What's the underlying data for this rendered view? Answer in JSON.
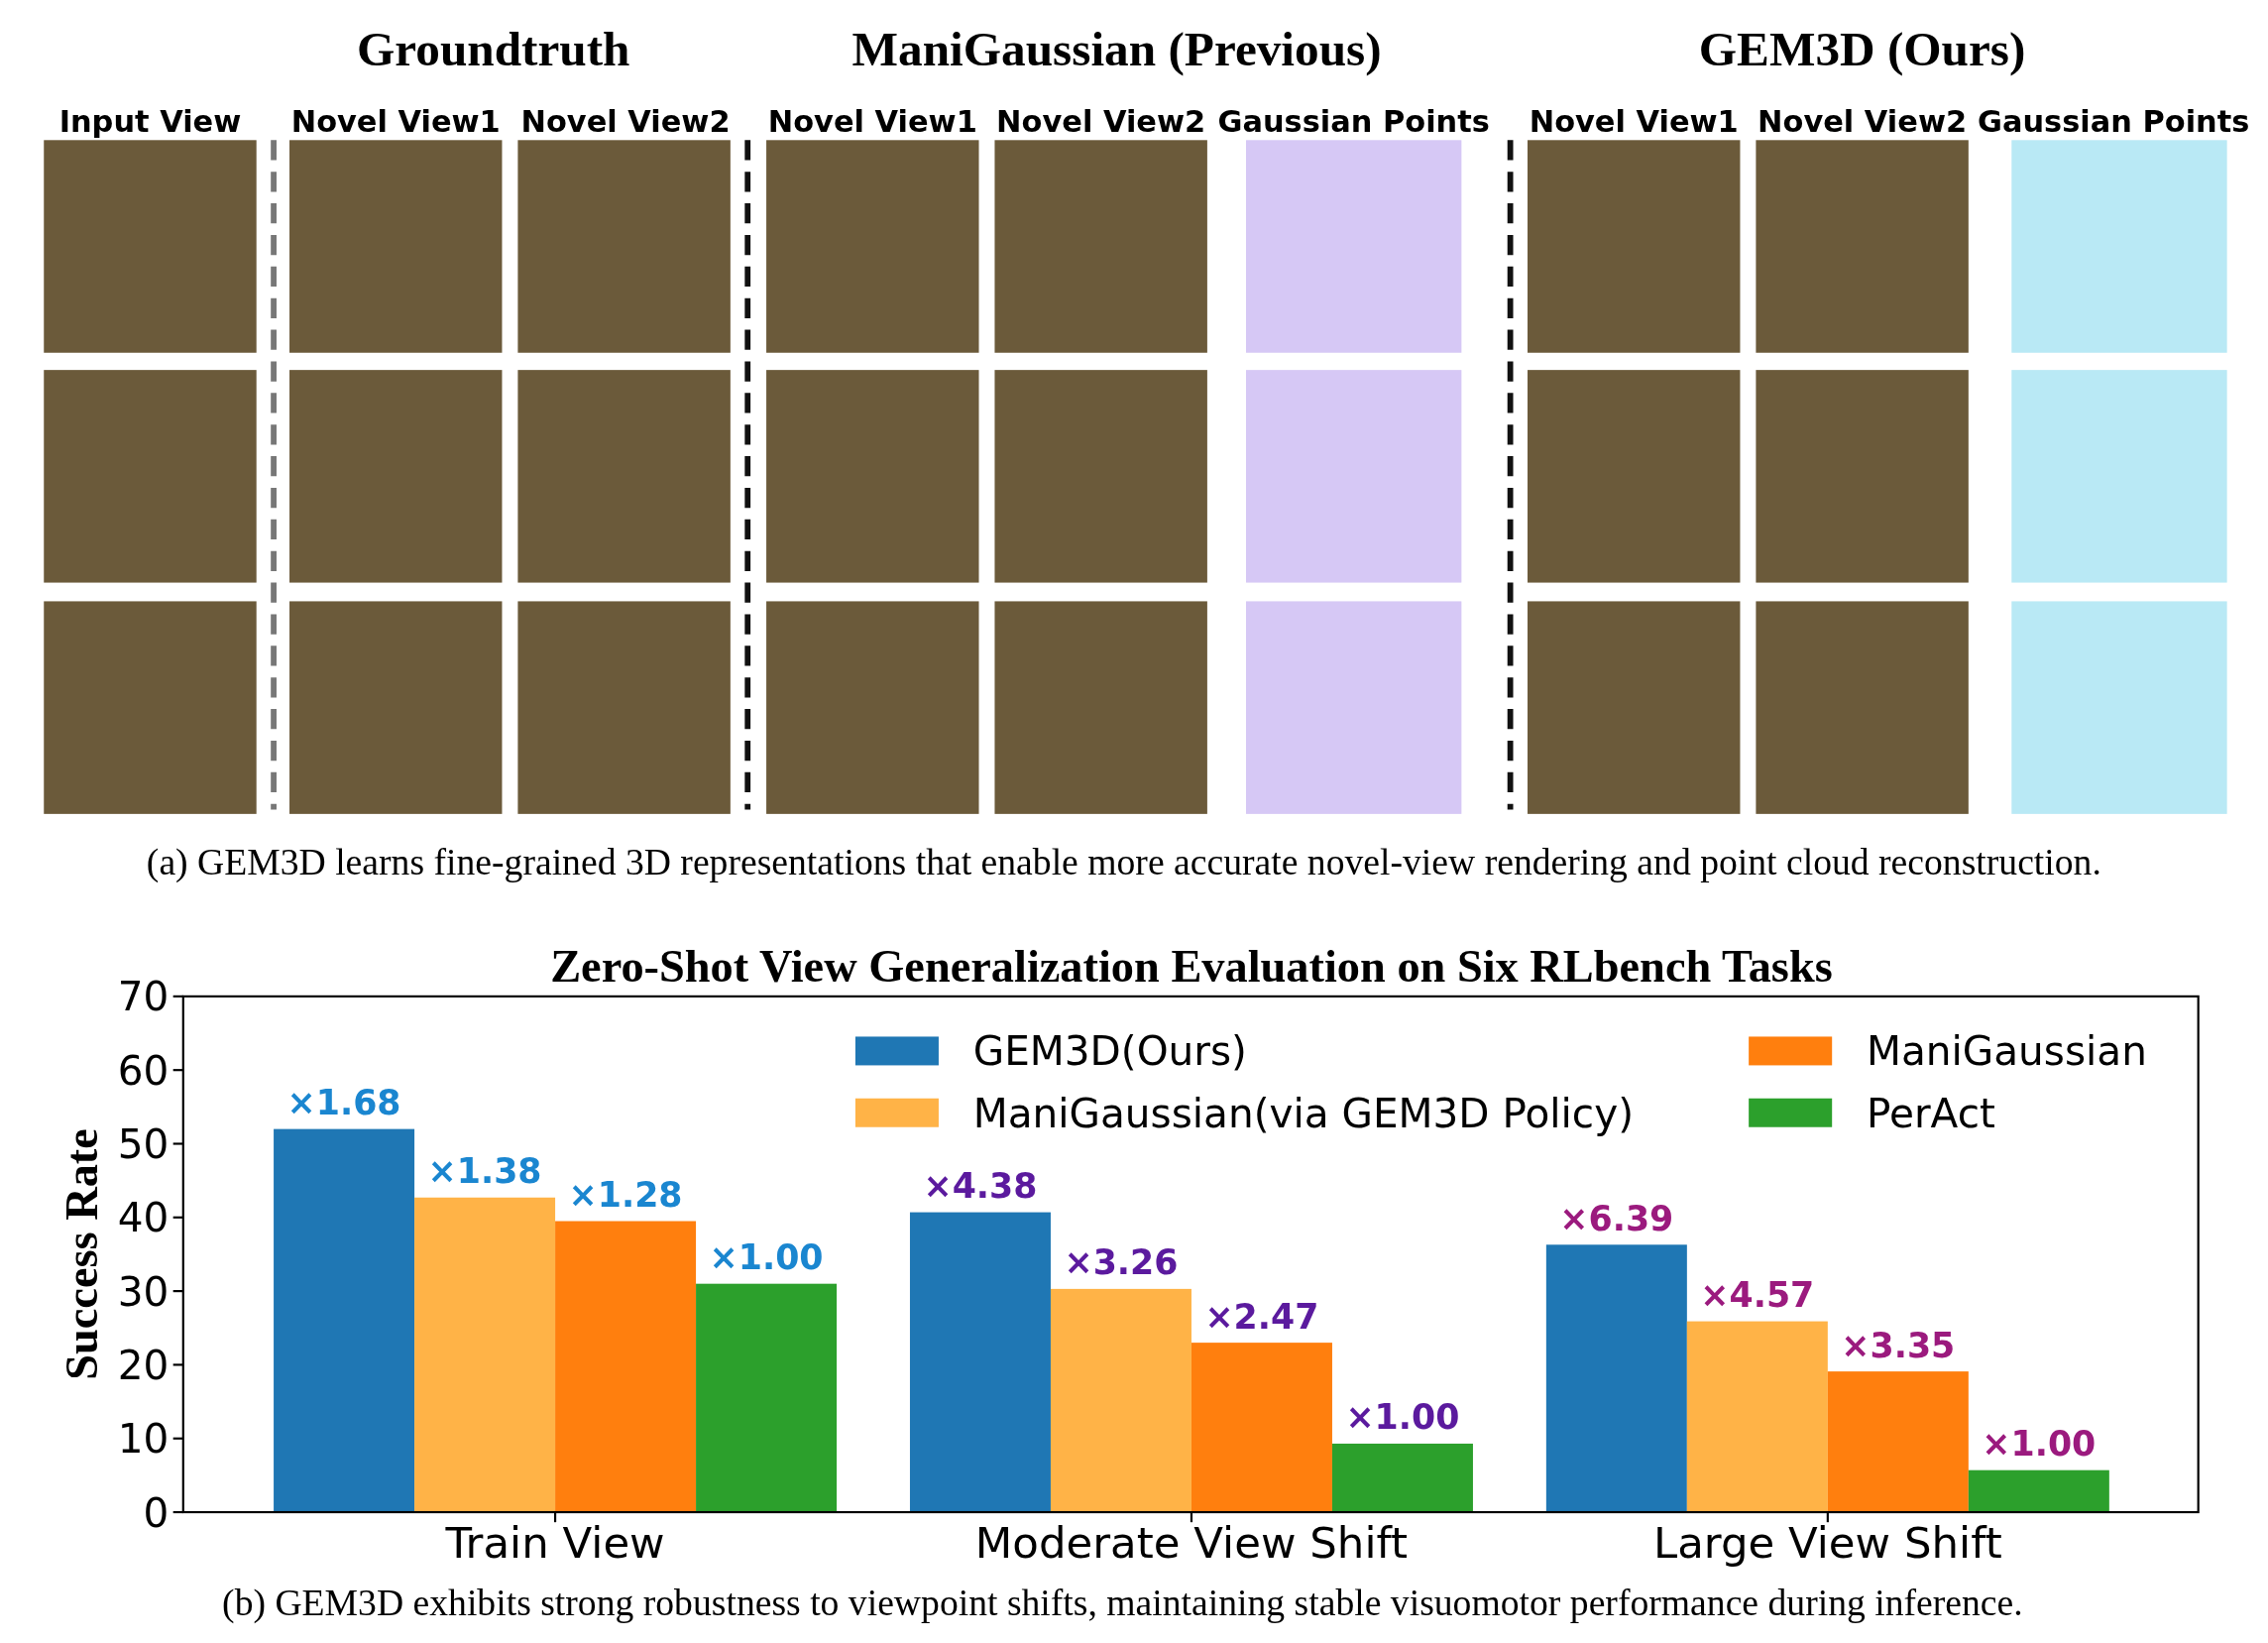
{
  "chart_data": {
    "type": "bar",
    "title": "Zero-Shot View Generalization Evaluation on Six RLbench Tasks",
    "ylabel": "Success Rate",
    "categories": [
      "Train View",
      "Moderate View Shift",
      "Large View Shift"
    ],
    "series": [
      {
        "name": "GEM3D(Ours)",
        "color": "#1f77b4",
        "values": [
          52.0,
          40.7,
          36.3
        ]
      },
      {
        "name": "ManiGaussian(via GEM3D Policy)",
        "color": "#ffb347",
        "values": [
          42.7,
          30.3,
          25.9
        ]
      },
      {
        "name": "ManiGaussian",
        "color": "#ff7f0e",
        "values": [
          39.5,
          23.0,
          19.1
        ]
      },
      {
        "name": "PerAct",
        "color": "#2ca02c",
        "values": [
          31.0,
          9.3,
          5.7
        ]
      }
    ],
    "ylim": [
      0,
      70
    ],
    "yticks": [
      0,
      10,
      20,
      30,
      40,
      50,
      60,
      70
    ],
    "legend": "top right",
    "annotations": [
      "Groundtruth",
      "ManiGaussian (Previous)",
      "GEM3D (Ours)",
      "Input View",
      "Novel View1",
      "Novel View2",
      "Novel View1",
      "Novel View2",
      "Gaussian Points",
      "Novel View1",
      "Novel View2",
      "Gaussian Points",
      "(a) GEM3D  learns fine-grained 3D representations that enable more accurate novel-view rendering and point cloud reconstruction.",
      "(b) GEM3D  exhibits strong robustness to viewpoint shifts, maintaining stable visuomotor performance during inference.",
      "×1.68",
      "×1.38",
      "×1.28",
      "×1.00",
      "×4.38",
      "×3.26",
      "×2.47",
      "×1.00",
      "×6.39",
      "×4.57",
      "×3.35",
      "×1.00"
    ]
  }
}
